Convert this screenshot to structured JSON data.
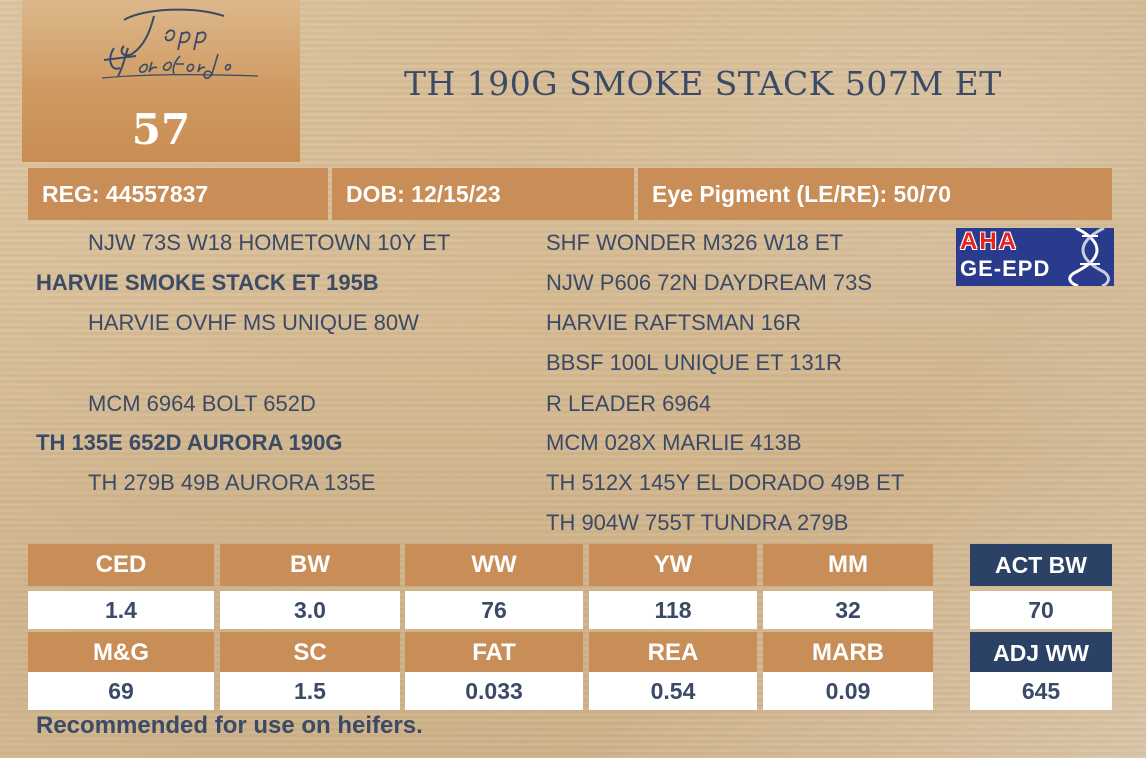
{
  "logo": {
    "brand": "Topp Herefords"
  },
  "lot_number": "57",
  "animal_name": "TH 190G SMOKE STACK 507M ET",
  "info": {
    "reg": "REG: 44557837",
    "dob": "DOB: 12/15/23",
    "eye": "Eye Pigment (LE/RE): 50/70"
  },
  "pedigree": {
    "left": [
      "NJW 73S W18 HOMETOWN 10Y ET",
      "HARVIE SMOKE STACK ET 195B",
      "HARVIE OVHF MS UNIQUE 80W",
      "MCM 6964 BOLT 652D",
      "TH 135E 652D AURORA 190G",
      "TH 279B 49B AURORA 135E"
    ],
    "right": [
      "SHF WONDER M326 W18 ET",
      "NJW P606 72N DAYDREAM 73S",
      "HARVIE RAFTSMAN 16R",
      "BBSF 100L UNIQUE ET 131R",
      "R LEADER 6964",
      "MCM 028X MARLIE 413B",
      "TH 512X 145Y EL DORADO 49B ET",
      "TH 904W 755T TUNDRA 279B"
    ]
  },
  "aha_badge": {
    "top": "AHA",
    "bottom": "GE-EPD",
    "colors": {
      "bg": "#2a3a8c",
      "red": "#e8201f"
    }
  },
  "epd": {
    "row1": {
      "headers": [
        "CED",
        "BW",
        "WW",
        "YW",
        "MM"
      ],
      "values": [
        "1.4",
        "3.0",
        "76",
        "118",
        "32"
      ]
    },
    "row2": {
      "headers": [
        "M&G",
        "SC",
        "FAT",
        "REA",
        "MARB"
      ],
      "values": [
        "69",
        "1.5",
        "0.033",
        "0.54",
        "0.09"
      ]
    },
    "act_bw": {
      "label": "ACT BW",
      "value": "70"
    },
    "adj_ww": {
      "label": "ADJ WW",
      "value": "645"
    }
  },
  "note": "Recommended for use on heifers.",
  "colors": {
    "tan": "#c98d57",
    "navy": "#2c4166",
    "text": "#3b4a66"
  }
}
